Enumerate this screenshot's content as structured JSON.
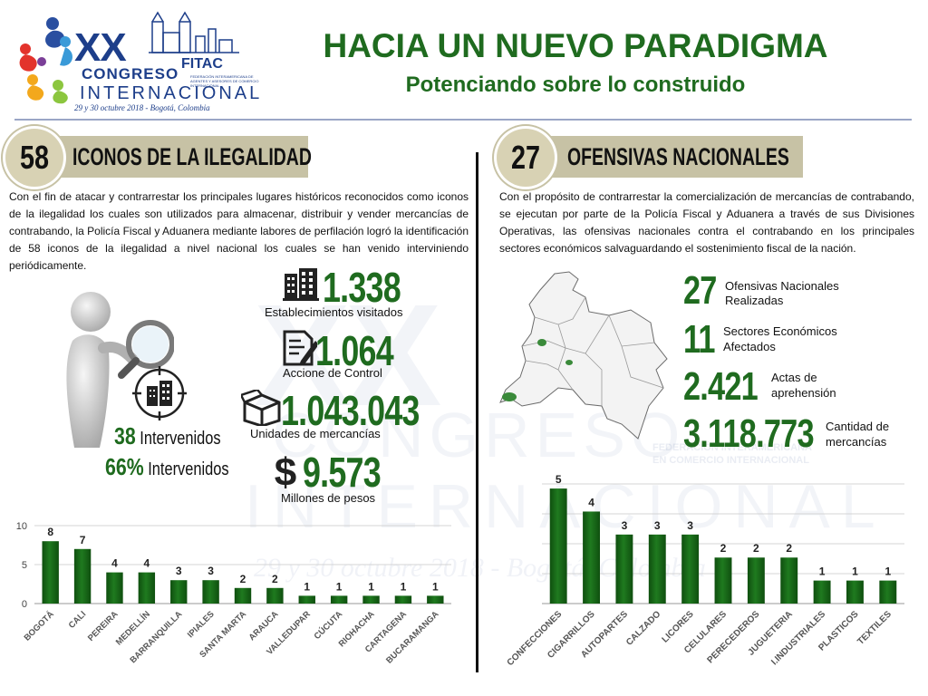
{
  "logo": {
    "xx": "XX",
    "congreso": "CONGRESO",
    "internacional": "INTERNACIONAL",
    "date": "29 y 30 octubre 2018 - Bogotá, Colombia",
    "fitac": "FITAC",
    "fitac_sub": "FEDERACIÓN INTERAMERICANA DE AGENTES Y ASESORES DE COMERCIO INTERNACIONAL"
  },
  "header": {
    "title": "HACIA UN NUEVO PARADIGMA",
    "subtitle": "Potenciando sobre lo construido"
  },
  "left": {
    "badge": "58",
    "banner": "ICONOS DE LA ILEGALIDAD",
    "paragraph": "Con el fin de atacar y contrarrestar los principales lugares históricos reconocidos como iconos de la ilegalidad los cuales son utilizados para almacenar, distribuir y vender mercancías de contrabando, la Policía Fiscal y Aduanera mediante labores de perfilación logró la identificación de 58 iconos de la ilegalidad a nivel nacional los cuales se han venido interviniendo periódicamente.",
    "stats": [
      {
        "value": "1.338",
        "label": "Establecimientos visitados",
        "icon": "building-icon"
      },
      {
        "value": "1.064",
        "label": "Accione de Control",
        "icon": "document-edit-icon"
      },
      {
        "value": "1.043.043",
        "label": "Unidades de mercancías",
        "icon": "box-icon"
      },
      {
        "value": "9.573",
        "label": "Millones de pesos",
        "icon": "dollar-icon"
      }
    ],
    "intervenidos_1_num": "38",
    "intervenidos_1_text": "Intervenidos",
    "intervenidos_2_num": "66%",
    "intervenidos_2_text": "Intervenidos"
  },
  "right": {
    "badge": "27",
    "banner": "OFENSIVAS NACIONALES",
    "paragraph": "Con el propósito de contrarrestar la comercialización de mercancías de contrabando, se ejecutan por parte de la Policía Fiscal y Aduanera a través de sus Divisiones Operativas, las ofensivas nacionales contra el contrabando en los principales sectores económicos salvaguardando el sostenimiento fiscal de la nación.",
    "stats": [
      {
        "value": "27",
        "label_1": "Ofensivas Nacionales",
        "label_2": "Realizadas"
      },
      {
        "value": "11",
        "label_1": "Sectores Económicos",
        "label_2": "Afectados"
      },
      {
        "value": "2.421",
        "label_1": "Actas de",
        "label_2": "aprehensión"
      },
      {
        "value": "3.118.773",
        "label_1": "Cantidad de",
        "label_2": "mercancías"
      }
    ]
  },
  "watermark": {
    "xx": "XX",
    "congreso": "CONGRESO",
    "internacional": "INTERNACIONAL",
    "date": "29 y 30 octubre 2018 - Bogotá, Colombia",
    "fitac_line_1": "FEDERACIÓN INTERAMERICANA",
    "fitac_line_2": "EN COMERCIO INTERNACIONAL"
  },
  "colors": {
    "bar": "#1f7a1f",
    "bar_dark": "#0f4f0f",
    "title_green": "#1f6b1f",
    "banner": "#c7c2a5"
  },
  "chart_data": [
    {
      "type": "bar",
      "categories": [
        "BOGOTÁ",
        "CALI",
        "PEREIRA",
        "MEDELLÍN",
        "BARRANQUILLA",
        "IPIALES",
        "SANTA MARTA",
        "ARAUCA",
        "VALLEDUPAR",
        "CÚCUTA",
        "RIOHACHA",
        "CARTAGENA",
        "BUCARAMANGA"
      ],
      "values": [
        8,
        7,
        4,
        4,
        3,
        3,
        2,
        2,
        1,
        1,
        1,
        1,
        1
      ],
      "ylim": [
        0,
        10
      ],
      "yticks": [
        0,
        5,
        10
      ],
      "grid": true,
      "title": "",
      "xlabel": "",
      "ylabel": ""
    },
    {
      "type": "bar",
      "categories": [
        "CONFECCIONES",
        "CIGARRILLOS",
        "AUTOPARTES",
        "CALZADO",
        "LICORES",
        "CELULARES",
        "PERECEDEROS",
        "JUGUETERIA",
        "I.INDUSTRIALES",
        "PLASTICOS",
        "TEXTILES"
      ],
      "values": [
        5,
        4,
        3,
        3,
        3,
        2,
        2,
        2,
        1,
        1,
        1
      ],
      "ylim": [
        0,
        5.2
      ],
      "yticks": [],
      "grid": true,
      "title": "",
      "xlabel": "",
      "ylabel": ""
    }
  ]
}
